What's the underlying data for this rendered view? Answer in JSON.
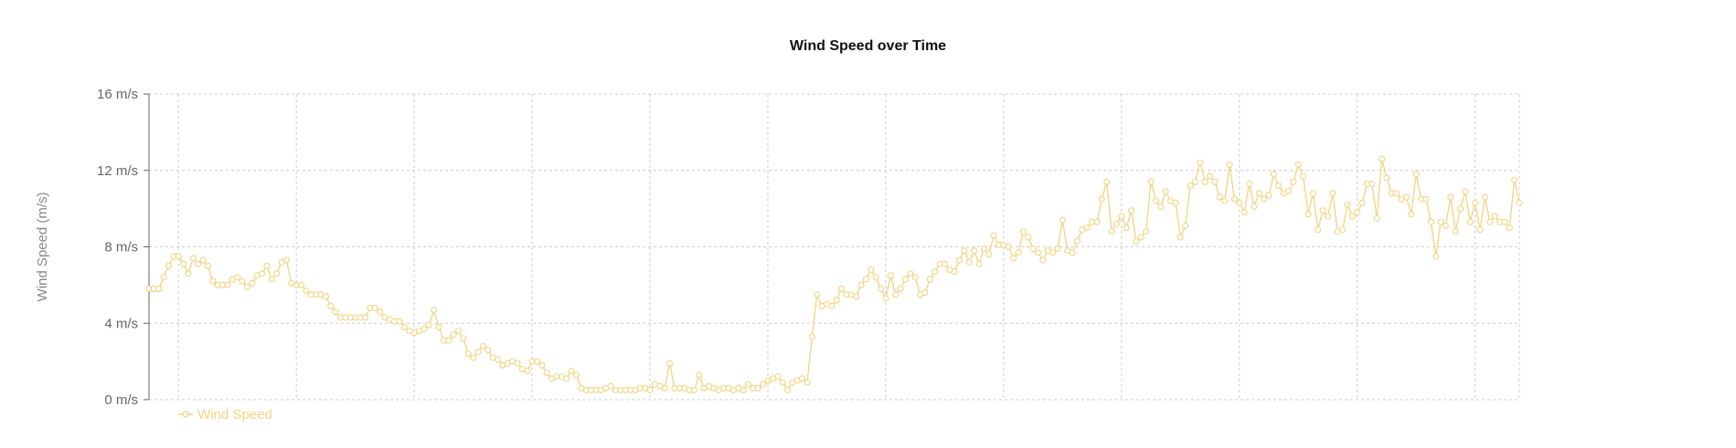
{
  "chart_data": {
    "type": "line",
    "title": "Wind Speed over Time",
    "xlabel": "",
    "ylabel": "Wind Speed (m/s)",
    "ylim": [
      0,
      16
    ],
    "y_ticks": [
      0,
      4,
      8,
      12,
      16
    ],
    "y_tick_labels": [
      "0 m/s",
      "4 m/s",
      "8 m/s",
      "12 m/s",
      "16 m/s"
    ],
    "grid": true,
    "legend": "bottom-left",
    "color": "#f2d47f",
    "series": [
      {
        "name": "Wind Speed",
        "values": [
          5.8,
          5.8,
          5.8,
          6.4,
          7.0,
          7.5,
          7.5,
          7.1,
          6.6,
          7.4,
          7.1,
          7.3,
          7.0,
          6.2,
          6.0,
          6.0,
          6.0,
          6.3,
          6.4,
          6.2,
          5.9,
          6.1,
          6.5,
          6.6,
          7.0,
          6.3,
          6.6,
          7.2,
          7.3,
          6.1,
          6.0,
          6.0,
          5.7,
          5.5,
          5.5,
          5.5,
          5.4,
          4.9,
          4.6,
          4.3,
          4.3,
          4.3,
          4.3,
          4.3,
          4.3,
          4.8,
          4.8,
          4.6,
          4.3,
          4.2,
          4.1,
          4.1,
          3.8,
          3.6,
          3.5,
          3.6,
          3.7,
          3.9,
          4.7,
          3.8,
          3.1,
          3.1,
          3.4,
          3.6,
          3.2,
          2.4,
          2.2,
          2.5,
          2.8,
          2.6,
          2.2,
          2.1,
          1.8,
          1.9,
          2.0,
          1.9,
          1.6,
          1.5,
          2.0,
          2.0,
          1.8,
          1.4,
          1.1,
          1.2,
          1.2,
          1.1,
          1.5,
          1.3,
          0.6,
          0.5,
          0.5,
          0.5,
          0.5,
          0.6,
          0.7,
          0.5,
          0.5,
          0.5,
          0.5,
          0.5,
          0.6,
          0.6,
          0.5,
          0.8,
          0.7,
          0.6,
          1.9,
          0.6,
          0.6,
          0.6,
          0.5,
          0.5,
          1.3,
          0.6,
          0.7,
          0.6,
          0.5,
          0.6,
          0.6,
          0.5,
          0.6,
          0.5,
          0.8,
          0.6,
          0.6,
          0.8,
          1.0,
          1.1,
          1.2,
          0.9,
          0.5,
          0.9,
          1.0,
          1.1,
          0.9,
          3.3,
          5.5,
          4.9,
          5.0,
          4.9,
          5.2,
          5.8,
          5.5,
          5.5,
          5.4,
          6.0,
          6.3,
          6.8,
          6.4,
          5.8,
          5.3,
          6.5,
          5.5,
          5.8,
          6.3,
          6.6,
          6.4,
          5.5,
          5.6,
          6.3,
          6.7,
          7.1,
          7.1,
          6.8,
          6.7,
          7.3,
          7.8,
          7.2,
          7.8,
          7.1,
          7.9,
          7.6,
          8.6,
          8.1,
          8.1,
          8.0,
          7.4,
          7.7,
          8.8,
          8.5,
          7.9,
          7.7,
          7.3,
          7.8,
          7.7,
          7.9,
          9.4,
          7.8,
          7.7,
          8.3,
          8.9,
          9.0,
          9.3,
          9.3,
          10.5,
          11.4,
          8.8,
          9.2,
          9.6,
          9.0,
          9.9,
          8.3,
          8.5,
          8.8,
          11.4,
          10.4,
          10.1,
          10.9,
          10.4,
          10.3,
          8.5,
          9.1,
          11.2,
          11.4,
          12.4,
          11.4,
          11.7,
          11.4,
          10.6,
          10.4,
          12.3,
          10.5,
          10.3,
          9.8,
          11.3,
          10.1,
          10.8,
          10.5,
          10.7,
          11.8,
          11.2,
          10.8,
          10.9,
          11.4,
          12.3,
          11.7,
          9.7,
          10.8,
          8.9,
          9.9,
          9.6,
          10.8,
          8.8,
          8.9,
          10.2,
          9.6,
          9.8,
          10.3,
          11.3,
          11.3,
          9.5,
          12.6,
          11.6,
          10.8,
          10.8,
          10.5,
          10.6,
          9.7,
          11.8,
          10.5,
          10.5,
          9.3,
          7.5,
          9.3,
          9.1,
          10.6,
          8.8,
          10.0,
          10.9,
          9.3,
          10.3,
          8.9,
          10.6,
          9.3,
          9.6,
          9.3,
          9.3,
          9.0,
          11.5,
          10.3
        ]
      }
    ]
  }
}
